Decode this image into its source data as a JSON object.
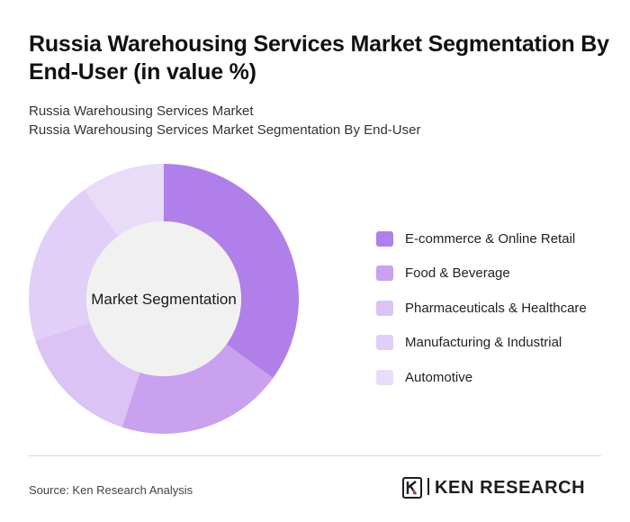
{
  "title": "Russia Warehousing Services Market Segmentation By End-User (in value %)",
  "subtitle_line1": "Russia Warehousing Services Market",
  "subtitle_line2": "Russia Warehousing Services Market Segmentation By End-User",
  "source": "Source: Ken Research Analysis",
  "brand": {
    "name": "KEN RESEARCH",
    "logo_icon": "ken-research-logo-icon"
  },
  "chart_data": {
    "type": "pie",
    "variant": "donut",
    "center_label": "Market Segmentation",
    "legend_placement": "right",
    "categories": [
      "E-commerce & Online Retail",
      "Food & Beverage",
      "Pharmaceuticals & Healthcare",
      "Manufacturing & Industrial",
      "Automotive"
    ],
    "values": [
      35,
      20,
      15,
      20,
      10
    ],
    "colors": [
      "#b07fe9",
      "#c9a1ef",
      "#dbc3f5",
      "#e2cff7",
      "#e9dcf9"
    ],
    "center_color": "#f1f1f1"
  }
}
